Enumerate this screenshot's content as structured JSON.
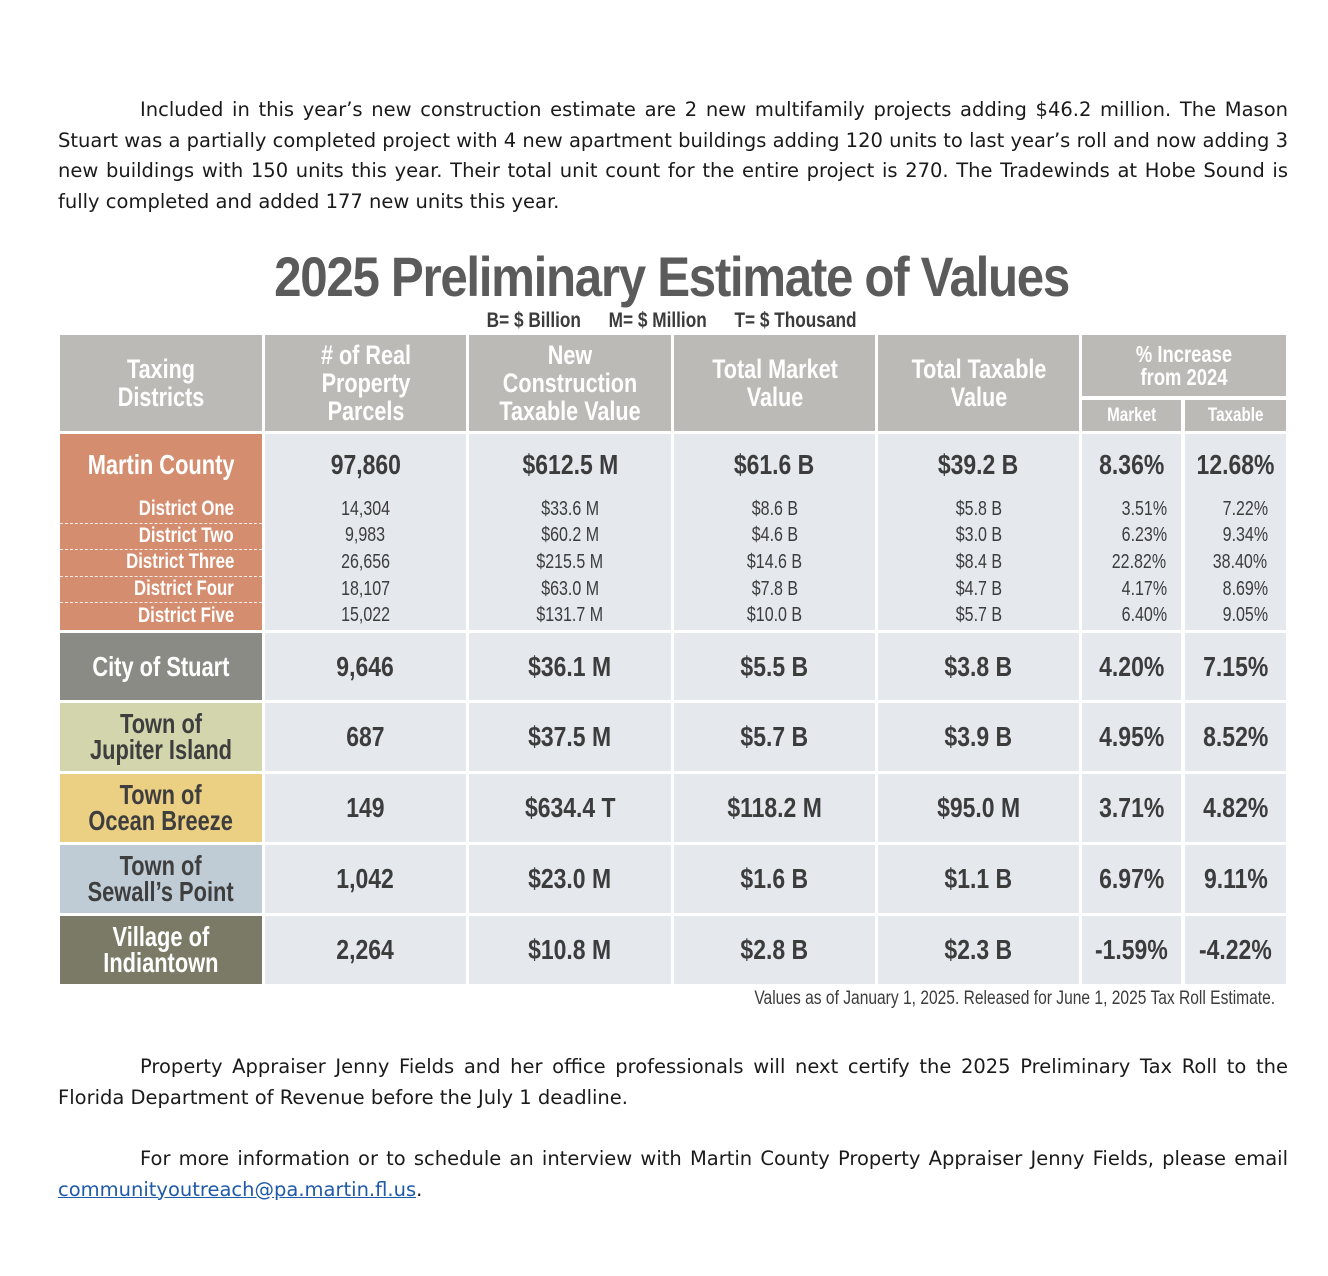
{
  "intro_paragraph": "Included in this year’s new construction estimate are 2 new multifamily projects adding $46.2 million. The Mason Stuart was a partially completed project with 4 new apartment buildings adding 120 units to last year’s roll and now adding 3 new buildings with 150 units this year. Their total unit count for the entire project is 270. The Tradewinds at Hobe Sound is fully completed and added 177 new units this year.",
  "title": "2025 Preliminary Estimate of Values",
  "legend": {
    "billion": "B= $ Billion",
    "million": "M= $ Million",
    "thousand": "T= $ Thousand"
  },
  "headers": {
    "taxing_districts": "Taxing Districts",
    "parcels": "# of Real Property Parcels",
    "new_construction": "New Construction Taxable Value",
    "market_value": "Total Market Value",
    "taxable_value": "Total Taxable Value",
    "pct_increase": "% Increase from 2024",
    "market": "Market",
    "taxable": "Taxable"
  },
  "rows": [
    {
      "name": "Martin County",
      "parcels": "97,860",
      "new_construction": "$612.5 M",
      "market_value": "$61.6 B",
      "taxable_value": "$39.2 B",
      "pct_market": "8.36%",
      "pct_taxable": "12.68%",
      "color": "#d48d6f"
    },
    {
      "name": "City of Stuart",
      "parcels": "9,646",
      "new_construction": "$36.1 M",
      "market_value": "$5.5 B",
      "taxable_value": "$3.8 B",
      "pct_market": "4.20%",
      "pct_taxable": "7.15%",
      "color": "#8b8b85"
    },
    {
      "name": "Town of Jupiter Island",
      "parcels": "687",
      "new_construction": "$37.5 M",
      "market_value": "$5.7 B",
      "taxable_value": "$3.9 B",
      "pct_market": "4.95%",
      "pct_taxable": "8.52%",
      "color": "#d3d6ad"
    },
    {
      "name": "Town of Ocean Breeze",
      "parcels": "149",
      "new_construction": "$634.4 T",
      "market_value": "$118.2 M",
      "taxable_value": "$95.0 M",
      "pct_market": "3.71%",
      "pct_taxable": "4.82%",
      "color": "#ebcf82"
    },
    {
      "name": "Town of Sewall’s Point",
      "parcels": "1,042",
      "new_construction": "$23.0 M",
      "market_value": "$1.6 B",
      "taxable_value": "$1.1 B",
      "pct_market": "6.97%",
      "pct_taxable": "9.11%",
      "color": "#c0ccd5"
    },
    {
      "name": "Village of Indiantown",
      "parcels": "2,264",
      "new_construction": "$10.8 M",
      "market_value": "$2.8 B",
      "taxable_value": "$2.3 B",
      "pct_market": "-1.59%",
      "pct_taxable": "-4.22%",
      "color": "#7a7a66"
    }
  ],
  "name_lines": [
    [
      "Martin County"
    ],
    [
      "City of Stuart"
    ],
    [
      "Town of",
      "Jupiter Island"
    ],
    [
      "Town of",
      "Ocean Breeze"
    ],
    [
      "Town of",
      "Sewall’s Point"
    ],
    [
      "Village of",
      "Indiantown"
    ]
  ],
  "districts": [
    {
      "name": "District One",
      "parcels": "14,304",
      "new_construction": "$33.6 M",
      "market_value": "$8.6 B",
      "taxable_value": "$5.8 B",
      "pct_market": "3.51%",
      "pct_taxable": "7.22%"
    },
    {
      "name": "District Two",
      "parcels": "9,983",
      "new_construction": "$60.2 M",
      "market_value": "$4.6 B",
      "taxable_value": "$3.0 B",
      "pct_market": "6.23%",
      "pct_taxable": "9.34%"
    },
    {
      "name": "District Three",
      "parcels": "26,656",
      "new_construction": "$215.5 M",
      "market_value": "$14.6 B",
      "taxable_value": "$8.4 B",
      "pct_market": "22.82%",
      "pct_taxable": "38.40%"
    },
    {
      "name": "District Four",
      "parcels": "18,107",
      "new_construction": "$63.0 M",
      "market_value": "$7.8 B",
      "taxable_value": "$4.7 B",
      "pct_market": "4.17%",
      "pct_taxable": "8.69%"
    },
    {
      "name": "District Five",
      "parcels": "15,022",
      "new_construction": "$131.7 M",
      "market_value": "$10.0 B",
      "taxable_value": "$5.7 B",
      "pct_market": "6.40%",
      "pct_taxable": "9.05%"
    }
  ],
  "footnote": "Values as of January 1, 2025. Released for June 1, 2025 Tax Roll Estimate.",
  "paragraph2": "Property Appraiser Jenny Fields and her office professionals will next certify the 2025 Preliminary Tax Roll to the Florida Department of Revenue before the July 1 deadline.",
  "paragraph3_text": "For more information or to schedule an interview with Martin County Property Appraiser Jenny Fields, please email",
  "email": "communityoutreach@pa.martin.fl.us",
  "paragraph3_end": "."
}
